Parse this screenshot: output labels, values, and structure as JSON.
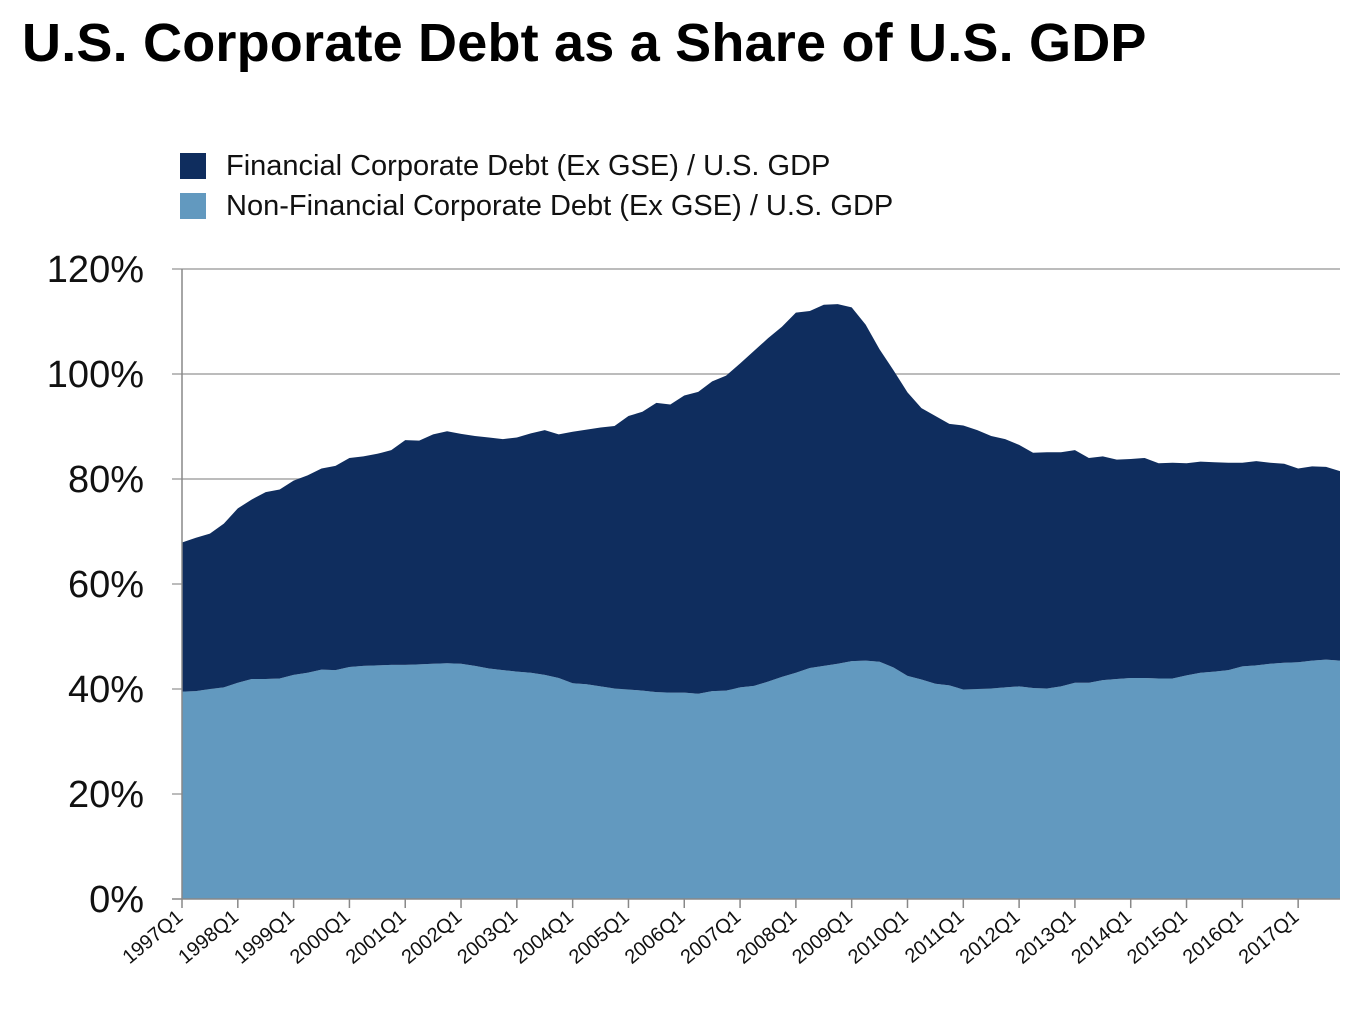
{
  "title": "U.S. Corporate Debt as a Share of U.S. GDP",
  "colors": {
    "financial": "#0f2d5e",
    "non_financial": "#6299bf",
    "grid": "#a6a6a6",
    "axis": "#888888"
  },
  "legend": [
    {
      "label": "Financial Corporate Debt (Ex GSE) / U.S. GDP",
      "color": "#0f2d5e"
    },
    {
      "label": "Non-Financial Corporate Debt (Ex GSE) / U.S. GDP",
      "color": "#6299bf"
    }
  ],
  "chart_data": {
    "type": "area",
    "stacked": true,
    "title": "U.S. Corporate Debt as a Share of U.S. GDP",
    "xlabel": "",
    "ylabel": "",
    "ylim": [
      0,
      120
    ],
    "y_ticks": [
      "0%",
      "20%",
      "40%",
      "60%",
      "80%",
      "100%",
      "120%"
    ],
    "x_tick_labels": [
      "1997Q1",
      "1998Q1",
      "1999Q1",
      "2000Q1",
      "2001Q1",
      "2002Q1",
      "2003Q1",
      "2004Q1",
      "2005Q1",
      "2006Q1",
      "2007Q1",
      "2008Q1",
      "2009Q1",
      "2010Q1",
      "2011Q1",
      "2012Q1",
      "2013Q1",
      "2014Q1",
      "2015Q1",
      "2016Q1",
      "2017Q1"
    ],
    "grid": true,
    "legend_position": "top-left",
    "x": [
      "1997Q1",
      "1997Q2",
      "1997Q3",
      "1997Q4",
      "1998Q1",
      "1998Q2",
      "1998Q3",
      "1998Q4",
      "1999Q1",
      "1999Q2",
      "1999Q3",
      "1999Q4",
      "2000Q1",
      "2000Q2",
      "2000Q3",
      "2000Q4",
      "2001Q1",
      "2001Q2",
      "2001Q3",
      "2001Q4",
      "2002Q1",
      "2002Q2",
      "2002Q3",
      "2002Q4",
      "2003Q1",
      "2003Q2",
      "2003Q3",
      "2003Q4",
      "2004Q1",
      "2004Q2",
      "2004Q3",
      "2004Q4",
      "2005Q1",
      "2005Q2",
      "2005Q3",
      "2005Q4",
      "2006Q1",
      "2006Q2",
      "2006Q3",
      "2006Q4",
      "2007Q1",
      "2007Q2",
      "2007Q3",
      "2007Q4",
      "2008Q1",
      "2008Q2",
      "2008Q3",
      "2008Q4",
      "2009Q1",
      "2009Q2",
      "2009Q3",
      "2009Q4",
      "2010Q1",
      "2010Q2",
      "2010Q3",
      "2010Q4",
      "2011Q1",
      "2011Q2",
      "2011Q3",
      "2011Q4",
      "2012Q1",
      "2012Q2",
      "2012Q3",
      "2012Q4",
      "2013Q1",
      "2013Q2",
      "2013Q3",
      "2013Q4",
      "2014Q1",
      "2014Q2",
      "2014Q3",
      "2014Q4",
      "2015Q1",
      "2015Q2",
      "2015Q3",
      "2015Q4",
      "2016Q1",
      "2016Q2",
      "2016Q3",
      "2016Q4",
      "2017Q1",
      "2017Q2",
      "2017Q3",
      "2017Q4"
    ],
    "series": [
      {
        "name": "Non-Financial Corporate Debt (Ex GSE) / U.S. GDP",
        "color": "#6299bf",
        "values": [
          39.5,
          39.6,
          40.0,
          40.3,
          41.2,
          41.9,
          41.9,
          42.0,
          42.7,
          43.1,
          43.7,
          43.6,
          44.2,
          44.4,
          44.5,
          44.6,
          44.6,
          44.7,
          44.8,
          44.9,
          44.8,
          44.4,
          43.9,
          43.6,
          43.3,
          43.1,
          42.7,
          42.1,
          41.1,
          40.9,
          40.5,
          40.1,
          39.9,
          39.7,
          39.4,
          39.3,
          39.3,
          39.1,
          39.6,
          39.7,
          40.3,
          40.6,
          41.4,
          42.3,
          43.1,
          44.0,
          44.4,
          44.8,
          45.3,
          45.4,
          45.2,
          44.1,
          42.5,
          41.8,
          41.0,
          40.7,
          39.9,
          40.0,
          40.1,
          40.3,
          40.5,
          40.2,
          40.1,
          40.5,
          41.2,
          41.2,
          41.7,
          41.9,
          42.1,
          42.1,
          42.0,
          42.0,
          42.6,
          43.1,
          43.3,
          43.6,
          44.3,
          44.5,
          44.8,
          45.0,
          45.1,
          45.4,
          45.6,
          45.4
        ]
      },
      {
        "name": "Financial Corporate Debt (Ex GSE) / U.S. GDP",
        "color": "#0f2d5e",
        "values": [
          28.4,
          29.2,
          29.6,
          31.2,
          33.2,
          34.2,
          35.6,
          36.0,
          37.0,
          37.6,
          38.3,
          38.9,
          39.8,
          39.9,
          40.3,
          40.9,
          42.8,
          42.6,
          43.7,
          44.2,
          43.8,
          43.8,
          44.0,
          44.0,
          44.6,
          45.6,
          46.6,
          46.4,
          47.9,
          48.5,
          49.3,
          50.0,
          52.1,
          53.1,
          55.1,
          54.9,
          56.6,
          57.5,
          59.0,
          60.0,
          61.7,
          63.8,
          65.4,
          66.7,
          68.6,
          68.0,
          68.8,
          68.5,
          67.4,
          64.0,
          59.5,
          56.6,
          54.0,
          51.7,
          51.0,
          49.8,
          50.3,
          49.3,
          48.1,
          47.3,
          46.0,
          44.8,
          45.0,
          44.6,
          44.3,
          42.8,
          42.6,
          41.8,
          41.7,
          41.9,
          41.0,
          41.1,
          40.4,
          40.2,
          39.9,
          39.5,
          38.8,
          38.9,
          38.3,
          37.9,
          36.9,
          37.0,
          36.7,
          36.1
        ]
      }
    ]
  }
}
